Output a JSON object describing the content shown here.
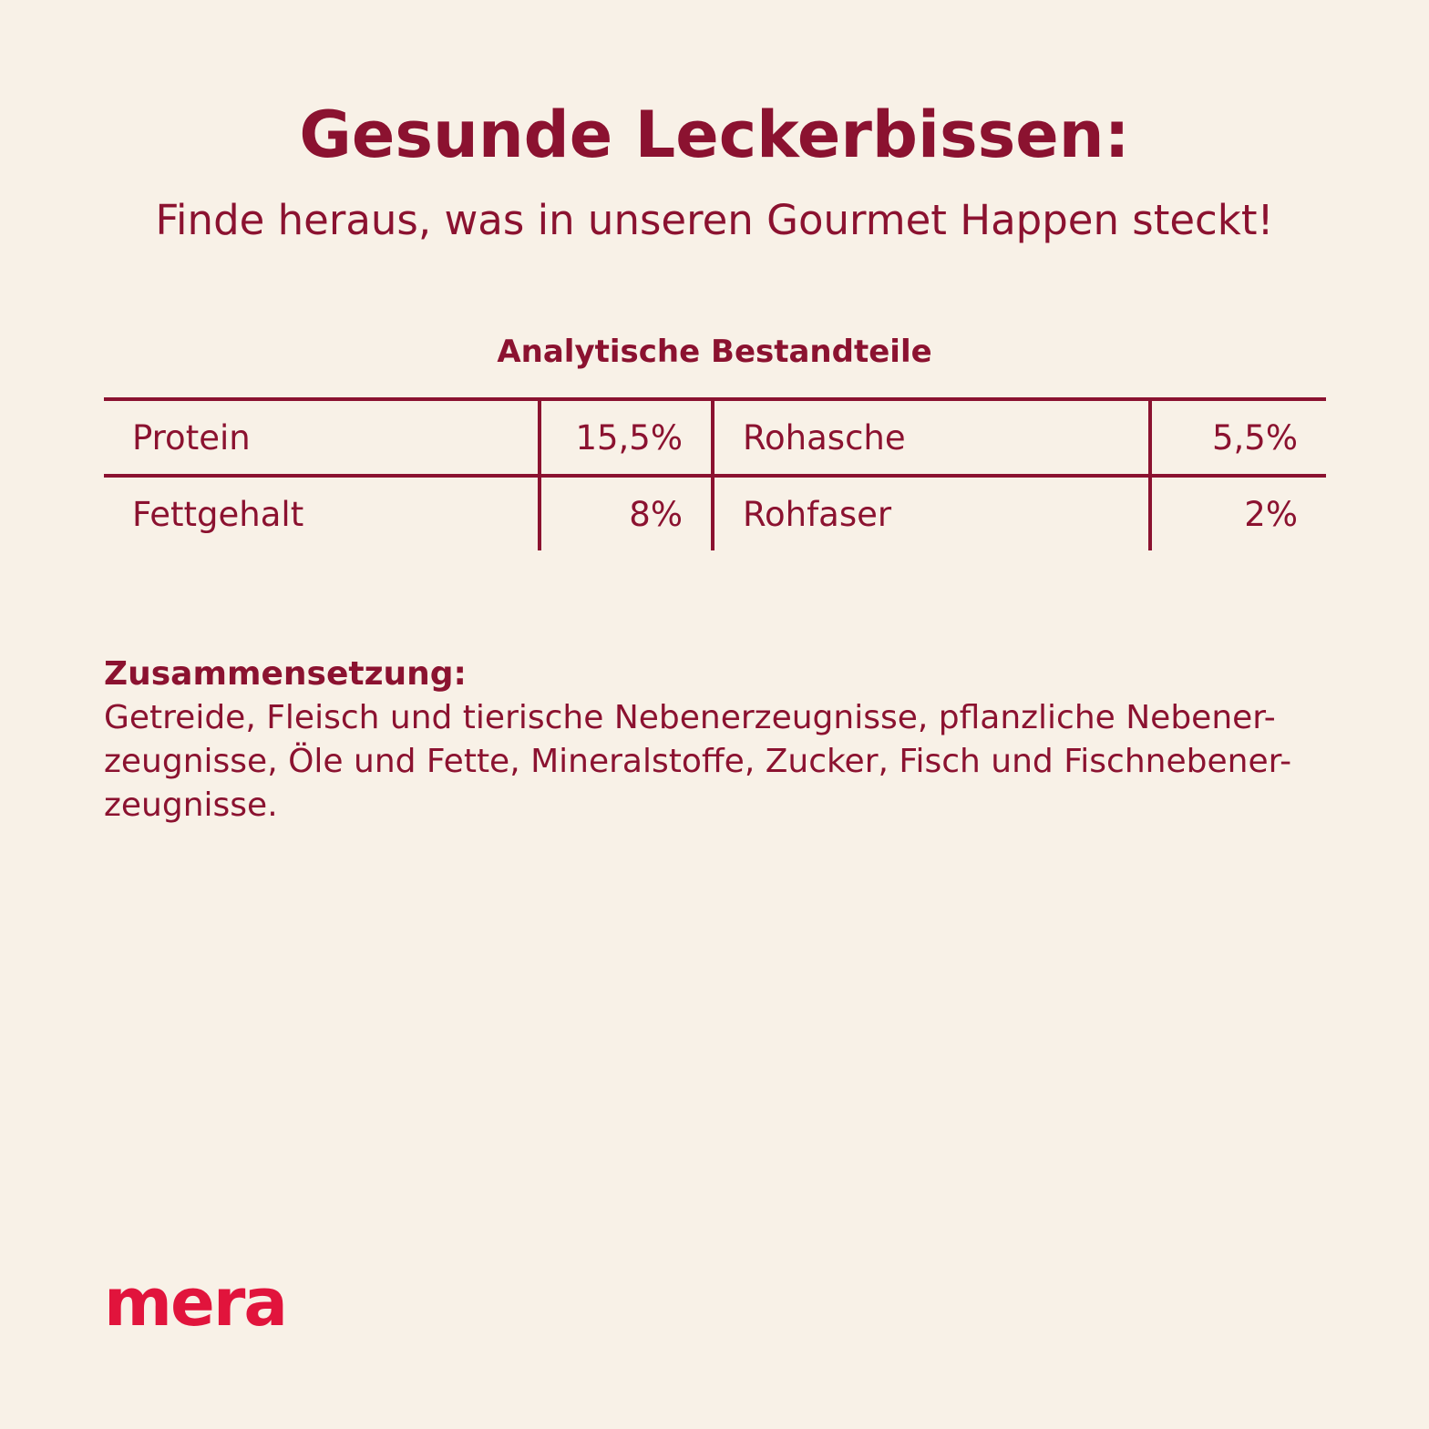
{
  "colors": {
    "background": "#f8f1e7",
    "text": "#8b1230",
    "brand": "#e1143c"
  },
  "header": {
    "title": "Gesunde Leckerbissen:",
    "subtitle": "Finde heraus, was in unseren Gourmet Happen steckt!"
  },
  "analysis": {
    "heading": "Analytische Bestandteile",
    "rows": [
      {
        "left_label": "Protein",
        "left_value": "15,5%",
        "right_label": "Rohasche",
        "right_value": "5,5%"
      },
      {
        "left_label": "Fettgehalt",
        "left_value": "8%",
        "right_label": "Rohfaser",
        "right_value": "2%"
      }
    ]
  },
  "composition": {
    "heading": "Zusammensetzung:",
    "lines": [
      "Getreide, Fleisch und tierische Nebenerzeugnisse, pflanzliche Nebener-",
      "zeugnisse, Öle und Fette, Mineralstoffe, Zucker, Fisch und Fischnebener-",
      "zeugnisse."
    ]
  },
  "brand": {
    "logo_text": "mera"
  }
}
